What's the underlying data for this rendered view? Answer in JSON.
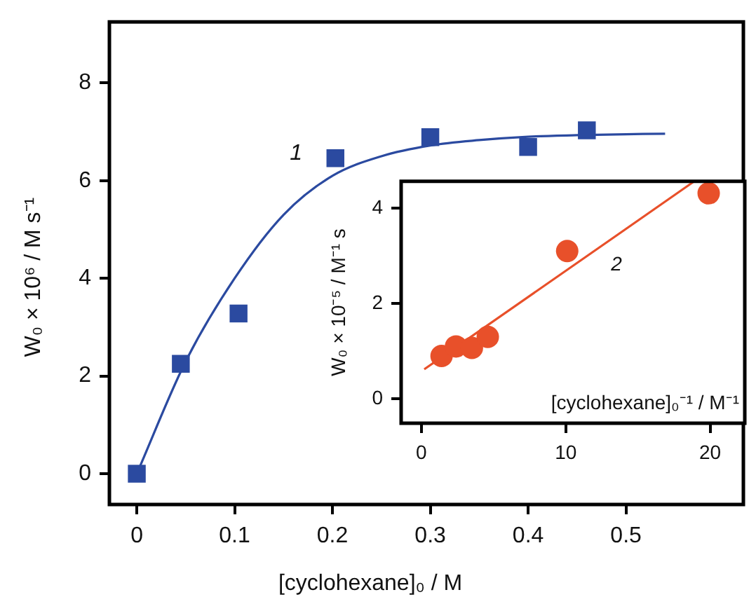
{
  "chart_data": [
    {
      "type": "scatter",
      "xlabel": "[cyclohexane]₀ / M",
      "ylabel": "W₀ × 10⁶ / M s⁻¹",
      "xlim": [
        -0.028,
        0.62
      ],
      "ylim": [
        -0.63,
        9.25
      ],
      "xticks": [
        0,
        0.1,
        0.2,
        0.3,
        0.4,
        0.5
      ],
      "yticks": [
        0,
        2,
        4,
        6,
        8
      ],
      "grid": false,
      "legend": false,
      "marker": "square",
      "series": [
        {
          "color": "#2b4aa0",
          "x": [
            0,
            0.045,
            0.104,
            0.203,
            0.3,
            0.4,
            0.46
          ],
          "values": [
            0,
            2.25,
            3.28,
            6.46,
            6.89,
            6.69,
            7.03
          ]
        },
        {
          "type": "line",
          "marker": "none",
          "color": "#2b4aa0",
          "x": [
            0,
            0.05,
            0.1,
            0.15,
            0.2,
            0.25,
            0.3,
            0.35,
            0.4,
            0.45,
            0.5,
            0.54
          ],
          "values": [
            0,
            2.3,
            4.0,
            5.3,
            6.1,
            6.5,
            6.72,
            6.83,
            6.9,
            6.93,
            6.95,
            6.96
          ]
        }
      ],
      "annotations": [
        "1"
      ]
    },
    {
      "type": "scatter",
      "xlabel": "[cyclohexane]₀⁻¹ / M⁻¹",
      "ylabel": "W₀ × 10⁻⁵ / M⁻¹ s",
      "xlim": [
        -1.4,
        22.4
      ],
      "ylim": [
        -0.51,
        4.56
      ],
      "xticks": [
        0,
        10,
        20
      ],
      "yticks": [
        0,
        2,
        4
      ],
      "grid": false,
      "legend": false,
      "marker": "circle",
      "series": [
        {
          "color": "#e8502a",
          "x": [
            1.4,
            2.4,
            3.5,
            4.6,
            10.1,
            19.9
          ],
          "values": [
            0.9,
            1.1,
            1.07,
            1.3,
            3.1,
            4.31
          ]
        },
        {
          "type": "line",
          "marker": "none",
          "color": "#e8502a",
          "x": [
            0.2,
            18.9
          ],
          "values": [
            0.62,
            4.56
          ]
        }
      ],
      "annotations": [
        "2"
      ]
    }
  ]
}
